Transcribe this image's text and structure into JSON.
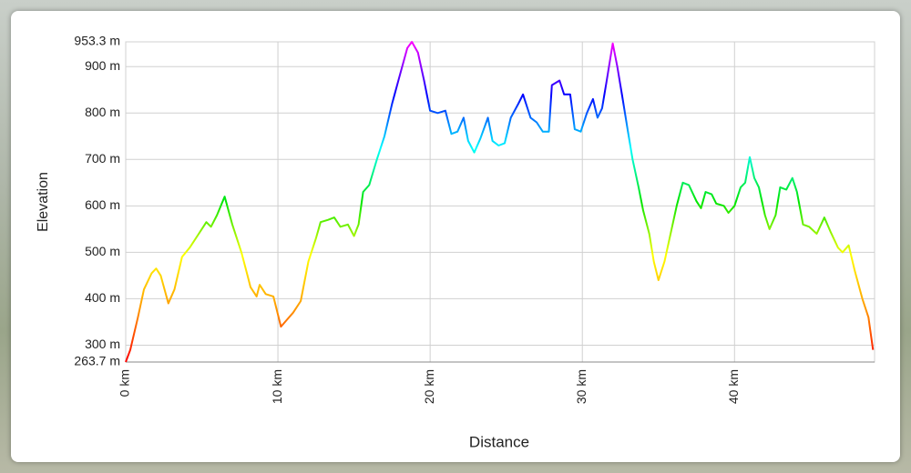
{
  "chart_data": {
    "type": "line",
    "x_label": "Distance",
    "y_label": "Elevation",
    "x": [
      0,
      0.3,
      0.8,
      1.2,
      1.7,
      2.0,
      2.3,
      2.8,
      3.2,
      3.7,
      4.2,
      4.8,
      5.3,
      5.6,
      6.0,
      6.5,
      7.0,
      7.6,
      8.0,
      8.2,
      8.6,
      8.8,
      9.2,
      9.7,
      10.2,
      10.6,
      11.0,
      11.5,
      12.0,
      12.5,
      12.8,
      13.3,
      13.7,
      14.1,
      14.6,
      15.0,
      15.3,
      15.6,
      16.0,
      16.5,
      17.0,
      17.5,
      18.0,
      18.5,
      18.8,
      19.2,
      19.6,
      20.0,
      20.5,
      21.0,
      21.4,
      21.8,
      22.2,
      22.5,
      22.9,
      23.3,
      23.8,
      24.1,
      24.5,
      24.9,
      25.3,
      25.8,
      26.1,
      26.6,
      27.0,
      27.4,
      27.8,
      28.0,
      28.5,
      28.8,
      29.2,
      29.5,
      29.9,
      30.3,
      30.7,
      31.0,
      31.3,
      31.6,
      32.0,
      32.3,
      32.6,
      33.0,
      33.3,
      33.7,
      34.0,
      34.4,
      34.7,
      35.0,
      35.4,
      35.8,
      36.2,
      36.6,
      37.0,
      37.5,
      37.8,
      38.1,
      38.5,
      38.8,
      39.3,
      39.6,
      40.0,
      40.4,
      40.7,
      41.0,
      41.3,
      41.6,
      42.0,
      42.3,
      42.7,
      43.0,
      43.4,
      43.8,
      44.1,
      44.5,
      44.9,
      45.4,
      45.9,
      46.3,
      46.8,
      47.1,
      47.5,
      47.9,
      48.4,
      48.8,
      49.1
    ],
    "values": [
      263.7,
      290,
      360,
      420,
      455,
      465,
      450,
      390,
      420,
      490,
      510,
      540,
      565,
      555,
      580,
      620,
      560,
      500,
      450,
      425,
      405,
      430,
      410,
      405,
      340,
      355,
      370,
      395,
      480,
      530,
      565,
      570,
      575,
      555,
      560,
      535,
      560,
      630,
      645,
      700,
      750,
      820,
      880,
      940,
      953.3,
      930,
      870,
      805,
      800,
      805,
      755,
      760,
      790,
      740,
      715,
      745,
      790,
      740,
      730,
      735,
      790,
      820,
      840,
      790,
      780,
      760,
      760,
      860,
      870,
      840,
      840,
      765,
      760,
      800,
      830,
      790,
      810,
      870,
      950,
      900,
      840,
      760,
      700,
      640,
      590,
      540,
      480,
      440,
      480,
      540,
      600,
      650,
      645,
      610,
      595,
      630,
      625,
      605,
      600,
      585,
      600,
      640,
      650,
      705,
      660,
      640,
      580,
      550,
      580,
      640,
      635,
      660,
      630,
      560,
      555,
      540,
      575,
      545,
      510,
      500,
      515,
      460,
      400,
      360,
      290
    ],
    "colors": [
      "#ff0000",
      "#ff9900",
      "#ffff00",
      "#00e600",
      "#00ffff",
      "#0000ff",
      "#ff00ff"
    ],
    "xlim": [
      0,
      49.2
    ],
    "ylim": [
      263.7,
      953.3
    ],
    "xticks": [
      {
        "value": 0,
        "label": "0 km"
      },
      {
        "value": 10,
        "label": "10 km"
      },
      {
        "value": 20,
        "label": "20 km"
      },
      {
        "value": 30,
        "label": "30 km"
      },
      {
        "value": 40,
        "label": "40 km"
      }
    ],
    "yticks": [
      {
        "value": 263.7,
        "label": "263.7 m"
      },
      {
        "value": 300,
        "label": "300 m"
      },
      {
        "value": 400,
        "label": "400 m"
      },
      {
        "value": 500,
        "label": "500 m"
      },
      {
        "value": 600,
        "label": "600 m"
      },
      {
        "value": 700,
        "label": "700 m"
      },
      {
        "value": 800,
        "label": "800 m"
      },
      {
        "value": 900,
        "label": "900 m"
      },
      {
        "value": 953.3,
        "label": "953.3 m"
      }
    ],
    "grid": true
  }
}
